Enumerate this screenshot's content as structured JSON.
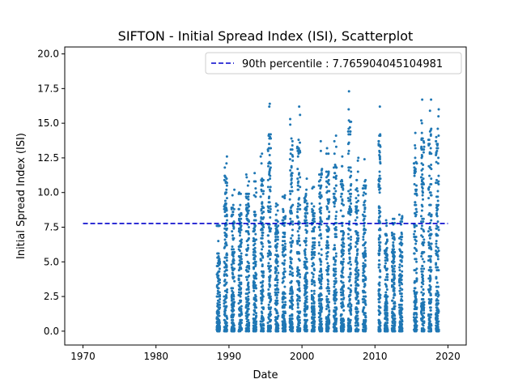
{
  "chart_data": {
    "type": "scatter",
    "title": "SIFTON - Initial Spread Index (ISI), Scatterplot",
    "xlabel": "Date",
    "ylabel": "Initial Spread Index (ISI)",
    "xlim": [
      1967.5,
      2022.5
    ],
    "ylim": [
      -1.0,
      20.5
    ],
    "x_ticks": [
      1970,
      1980,
      1990,
      2000,
      2010,
      2020
    ],
    "x_tick_labels": [
      "1970",
      "1980",
      "1990",
      "2000",
      "2010",
      "2020"
    ],
    "y_ticks": [
      0.0,
      2.5,
      5.0,
      7.5,
      10.0,
      12.5,
      15.0,
      17.5,
      20.0
    ],
    "y_tick_labels": [
      "0.0",
      "2.5",
      "5.0",
      "7.5",
      "10.0",
      "12.5",
      "15.0",
      "17.5",
      "20.0"
    ],
    "grid": false,
    "legend_position": "top-right",
    "reference_line": {
      "label": "90th percentile : 7.765904045104981",
      "y": 7.765904045104981,
      "x_range": [
        1970,
        2020
      ],
      "style": "dashed",
      "color": "#0000cc"
    },
    "series": [
      {
        "color": "#1f77b4",
        "fire_seasons": [
          {
            "year": 1988,
            "start": 0.33,
            "end": 0.75,
            "max": 6.5
          },
          {
            "year": 1989,
            "start": 0.33,
            "end": 0.75,
            "max": 12.6
          },
          {
            "year": 1990,
            "start": 0.33,
            "end": 0.75,
            "max": 10.2
          },
          {
            "year": 1991,
            "start": 0.33,
            "end": 0.75,
            "max": 10.0
          },
          {
            "year": 1992,
            "start": 0.33,
            "end": 0.75,
            "max": 11.3
          },
          {
            "year": 1993,
            "start": 0.33,
            "end": 0.75,
            "max": 11.4
          },
          {
            "year": 1994,
            "start": 0.33,
            "end": 0.75,
            "max": 12.8
          },
          {
            "year": 1995,
            "start": 0.33,
            "end": 0.75,
            "max": 16.4
          },
          {
            "year": 1996,
            "start": 0.33,
            "end": 0.75,
            "max": 9.2
          },
          {
            "year": 1997,
            "start": 0.33,
            "end": 0.75,
            "max": 9.8
          },
          {
            "year": 1998,
            "start": 0.33,
            "end": 0.75,
            "max": 15.3
          },
          {
            "year": 1999,
            "start": 0.33,
            "end": 0.75,
            "max": 16.2
          },
          {
            "year": 2000,
            "start": 0.33,
            "end": 0.75,
            "max": 11.0
          },
          {
            "year": 2001,
            "start": 0.33,
            "end": 0.75,
            "max": 10.4
          },
          {
            "year": 2002,
            "start": 0.33,
            "end": 0.75,
            "max": 13.7
          },
          {
            "year": 2003,
            "start": 0.33,
            "end": 0.75,
            "max": 13.2
          },
          {
            "year": 2004,
            "start": 0.33,
            "end": 0.75,
            "max": 14.1
          },
          {
            "year": 2005,
            "start": 0.33,
            "end": 0.75,
            "max": 12.6
          },
          {
            "year": 2006,
            "start": 0.33,
            "end": 0.75,
            "max": 17.3
          },
          {
            "year": 2007,
            "start": 0.33,
            "end": 0.75,
            "max": 12.5
          },
          {
            "year": 2008,
            "start": 0.33,
            "end": 0.75,
            "max": 12.4
          },
          {
            "year": 2010,
            "start": 0.5,
            "end": 0.75,
            "max": 16.2
          },
          {
            "year": 2011,
            "start": 0.33,
            "end": 0.75,
            "max": 8.0
          },
          {
            "year": 2012,
            "start": 0.33,
            "end": 0.75,
            "max": 8.1
          },
          {
            "year": 2013,
            "start": 0.33,
            "end": 0.75,
            "max": 8.4
          },
          {
            "year": 2015,
            "start": 0.33,
            "end": 0.75,
            "max": 14.3
          },
          {
            "year": 2016,
            "start": 0.33,
            "end": 0.75,
            "max": 16.7
          },
          {
            "year": 2017,
            "start": 0.33,
            "end": 0.75,
            "max": 16.7
          },
          {
            "year": 2018,
            "start": 0.33,
            "end": 0.75,
            "max": 16.0
          }
        ]
      }
    ]
  }
}
